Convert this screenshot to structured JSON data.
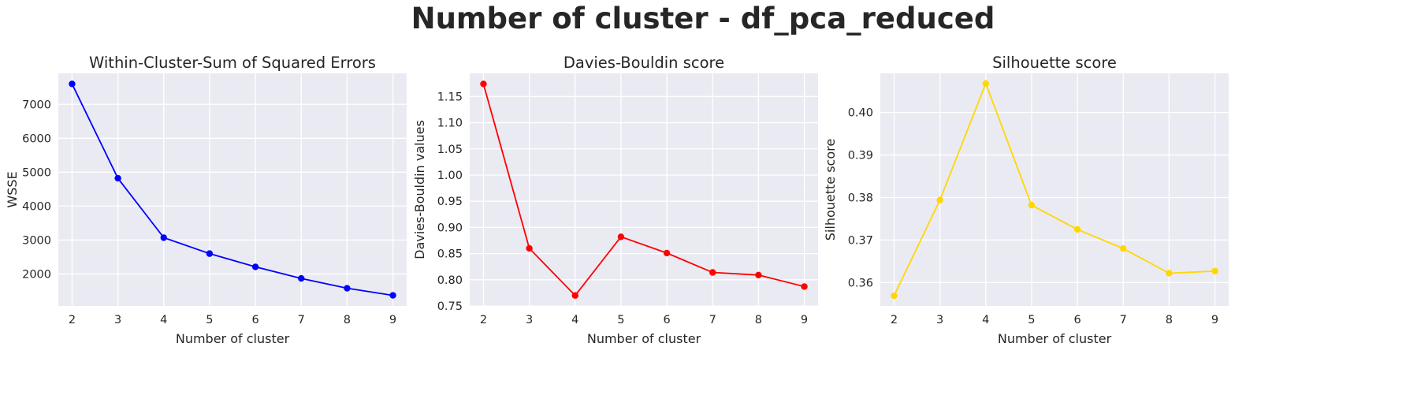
{
  "suptitle": "Number of cluster - df_pca_reduced",
  "chart_data": [
    {
      "type": "line",
      "title": "Within-Cluster-Sum of Squared Errors",
      "xlabel": "Number of cluster",
      "ylabel": "WSSE",
      "color": "#0000ff",
      "x": [
        2,
        3,
        4,
        5,
        6,
        7,
        8,
        9
      ],
      "values": [
        7600,
        4820,
        3070,
        2600,
        2210,
        1870,
        1580,
        1370
      ],
      "xlim": [
        1.7,
        9.3
      ],
      "ylim": [
        1058,
        7912
      ],
      "xticks": [
        2,
        3,
        4,
        5,
        6,
        7,
        8,
        9
      ],
      "yticks": [
        2000,
        3000,
        4000,
        5000,
        6000,
        7000
      ],
      "ytick_decimals": 0,
      "grid": true
    },
    {
      "type": "line",
      "title": "Davies-Bouldin score",
      "xlabel": "Number of cluster",
      "ylabel": "Davies-Bouldin values",
      "color": "#ff0000",
      "x": [
        2,
        3,
        4,
        5,
        6,
        7,
        8,
        9
      ],
      "values": [
        1.174,
        0.86,
        0.77,
        0.882,
        0.851,
        0.814,
        0.809,
        0.787
      ],
      "xlim": [
        1.7,
        9.3
      ],
      "ylim": [
        0.75,
        1.1942
      ],
      "xticks": [
        2,
        3,
        4,
        5,
        6,
        7,
        8,
        9
      ],
      "yticks": [
        0.75,
        0.8,
        0.85,
        0.9,
        0.95,
        1.0,
        1.05,
        1.1,
        1.15
      ],
      "ytick_decimals": 2,
      "grid": true
    },
    {
      "type": "line",
      "title": "Silhouette score",
      "xlabel": "Number of cluster",
      "ylabel": "Silhouette score",
      "color": "#ffd700",
      "x": [
        2,
        3,
        4,
        5,
        6,
        7,
        8,
        9
      ],
      "values": [
        0.3569,
        0.3794,
        0.4068,
        0.3782,
        0.3725,
        0.368,
        0.3622,
        0.3627
      ],
      "xlim": [
        1.7,
        9.3
      ],
      "ylim": [
        0.3545,
        0.4092
      ],
      "xticks": [
        2,
        3,
        4,
        5,
        6,
        7,
        8,
        9
      ],
      "yticks": [
        0.36,
        0.37,
        0.38,
        0.39,
        0.4
      ],
      "ytick_decimals": 2,
      "grid": true
    }
  ]
}
